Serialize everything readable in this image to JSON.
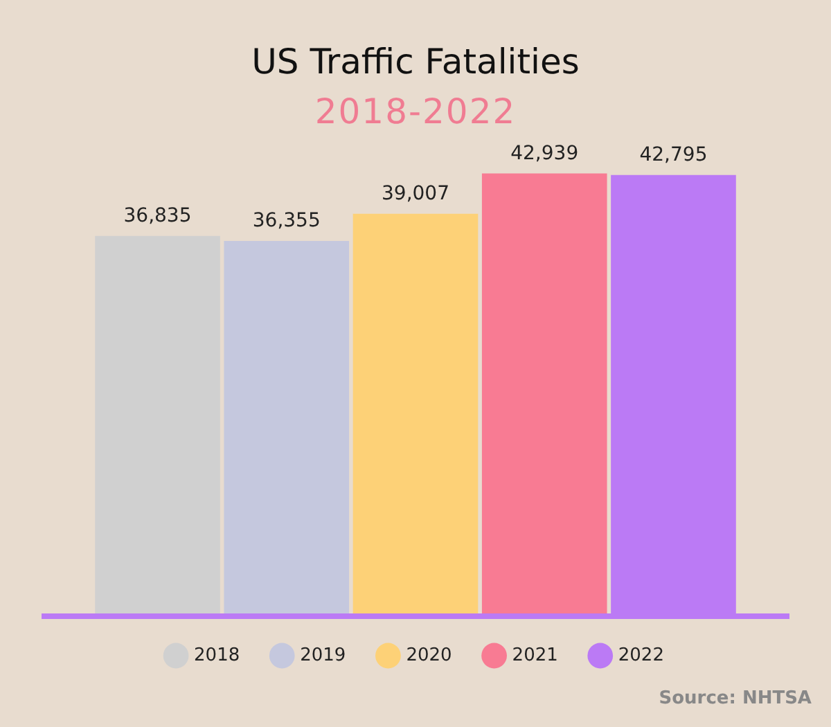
{
  "chart_data": {
    "type": "bar",
    "title": "US Traffic Fatalities",
    "subtitle": "2018-2022",
    "categories": [
      null
    ],
    "series": [
      {
        "name": "2018",
        "color": "#d0d0d0",
        "values": [
          36835
        ],
        "value_labels": [
          "36,835"
        ]
      },
      {
        "name": "2019",
        "color": "#c5c8de",
        "values": [
          36355
        ],
        "value_labels": [
          "36,355"
        ]
      },
      {
        "name": "2020",
        "color": "#fdd177",
        "values": [
          39007
        ],
        "value_labels": [
          "39,007"
        ]
      },
      {
        "name": "2021",
        "color": "#f87b93",
        "values": [
          42939
        ],
        "value_labels": [
          "42,939"
        ]
      },
      {
        "name": "2022",
        "color": "#bb7af5",
        "values": [
          42795
        ],
        "value_labels": [
          "42,795"
        ]
      }
    ],
    "tick_labels": false,
    "legend": "bottom",
    "annotations": [
      "Source: NHTSA"
    ]
  }
}
